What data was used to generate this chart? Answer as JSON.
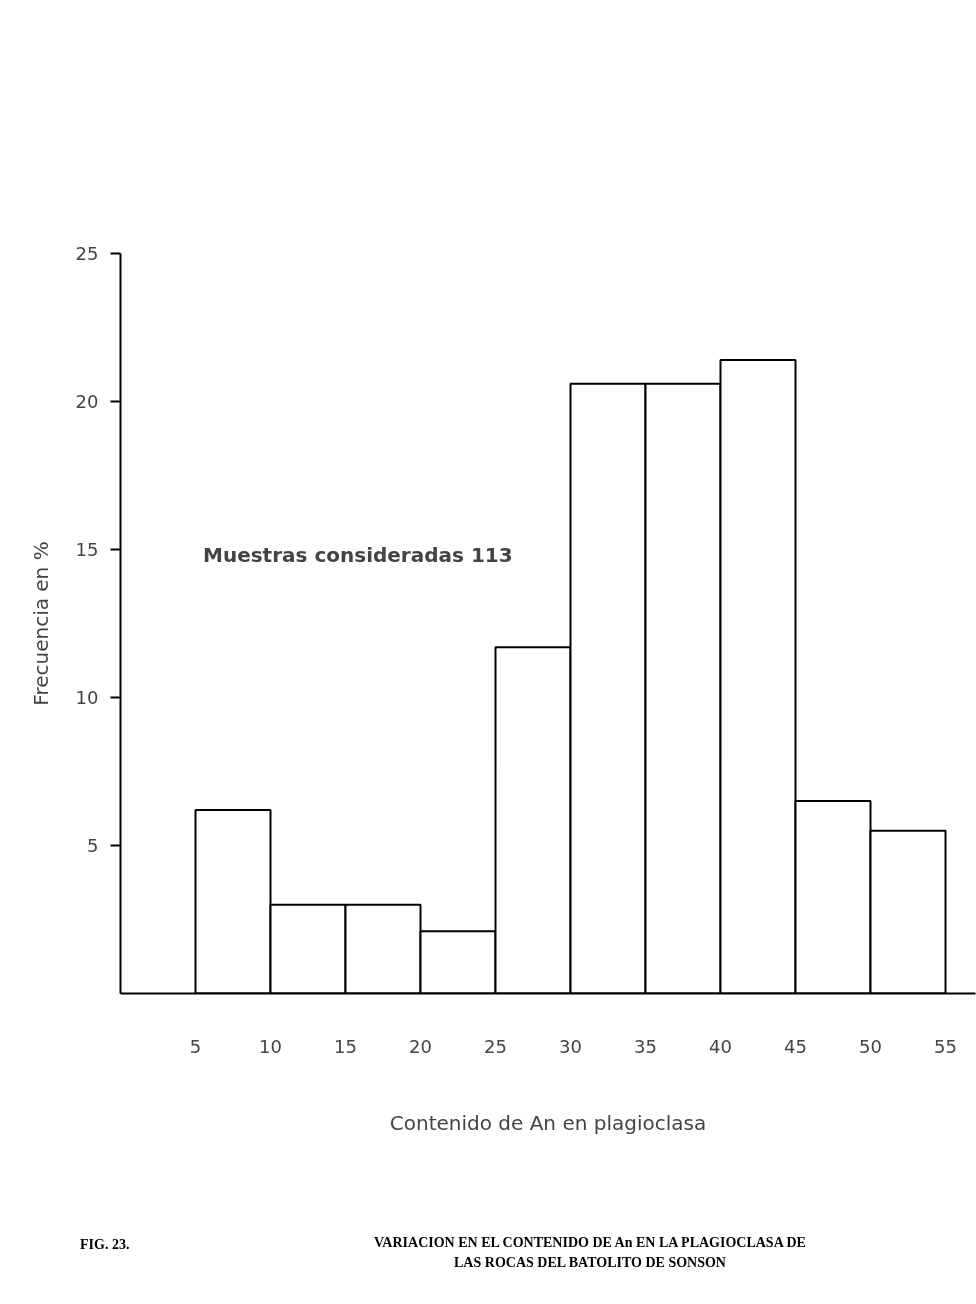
{
  "chart_data": {
    "type": "histogram",
    "xlabel": "Contenido de An en plagioclasa",
    "ylabel": "Frecuencia en %",
    "bins": [
      5,
      10,
      15,
      20,
      25,
      30,
      35,
      40,
      45,
      50,
      55
    ],
    "values": [
      6.2,
      3.0,
      3.0,
      2.1,
      11.7,
      20.6,
      20.6,
      21.4,
      6.5,
      5.5
    ],
    "color": "#ffffff",
    "xlim": [
      0,
      57
    ],
    "ylim": [
      0,
      25
    ],
    "xticks": [
      5,
      10,
      15,
      20,
      25,
      30,
      35,
      40,
      45,
      50,
      55
    ],
    "yticks": [
      5,
      10,
      15,
      20,
      25
    ],
    "annotations": [
      "Muestras consideradas 113",
      "FIG. 23.",
      "VARIACION EN EL CONTENIDO DE An EN LA PLAGIOCLASA DE",
      "LAS ROCAS DEL BATOLITO DE SONSON"
    ]
  }
}
